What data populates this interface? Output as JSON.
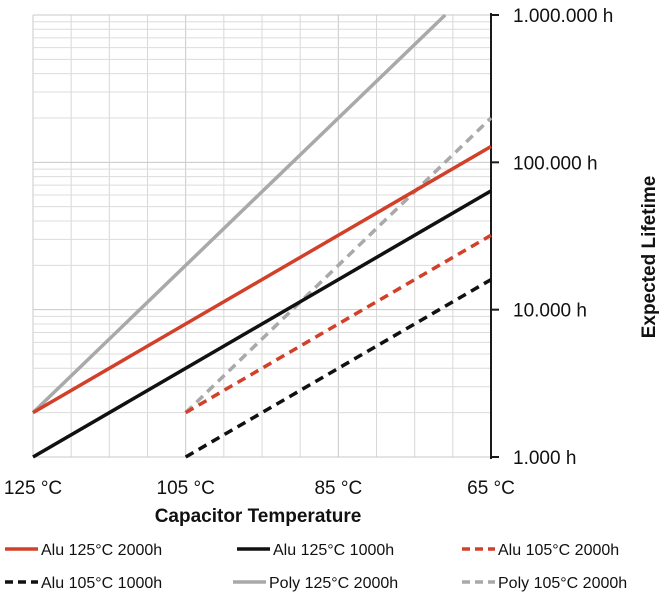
{
  "chart_data": {
    "type": "line",
    "title": "",
    "xlabel": "Capacitor Temperature",
    "ylabel": "Expected Lifetime",
    "x_unit": "°C",
    "y_scale": "log",
    "xlim": [
      125,
      65
    ],
    "ylim": [
      1000,
      1000000
    ],
    "x_ticks": [
      {
        "value": 125,
        "label": "125 °C"
      },
      {
        "value": 105,
        "label": "105 °C"
      },
      {
        "value": 85,
        "label": "85 °C"
      },
      {
        "value": 65,
        "label": "65 °C"
      }
    ],
    "y_ticks": [
      {
        "value": 1000000,
        "label": "1.000.000 h"
      },
      {
        "value": 100000,
        "label": "100.000 h"
      },
      {
        "value": 10000,
        "label": "10.000 h"
      },
      {
        "value": 1000,
        "label": "1.000 h"
      }
    ],
    "grid": true,
    "legend_position": "bottom",
    "series": [
      {
        "name": "Alu 125°C 2000h",
        "color": "#d2402a",
        "dash": "solid",
        "x": [
          125,
          65
        ],
        "y": [
          2000,
          128000
        ]
      },
      {
        "name": "Alu 125°C 1000h",
        "color": "#111111",
        "dash": "solid",
        "x": [
          125,
          65
        ],
        "y": [
          1000,
          64000
        ]
      },
      {
        "name": "Alu 105°C 2000h",
        "color": "#d2402a",
        "dash": "dashed",
        "x": [
          105,
          65
        ],
        "y": [
          2000,
          32000
        ]
      },
      {
        "name": "Alu 105°C 1000h",
        "color": "#111111",
        "dash": "dashed",
        "x": [
          105,
          65
        ],
        "y": [
          1000,
          16000
        ]
      },
      {
        "name": "Poly 125°C 2000h",
        "color": "#a9a9a9",
        "dash": "solid",
        "x": [
          125,
          71
        ],
        "y": [
          2000,
          1000000
        ]
      },
      {
        "name": "Poly 105°C 2000h",
        "color": "#a9a9a9",
        "dash": "dashed",
        "x": [
          105,
          65
        ],
        "y": [
          2000,
          200000
        ]
      }
    ]
  }
}
